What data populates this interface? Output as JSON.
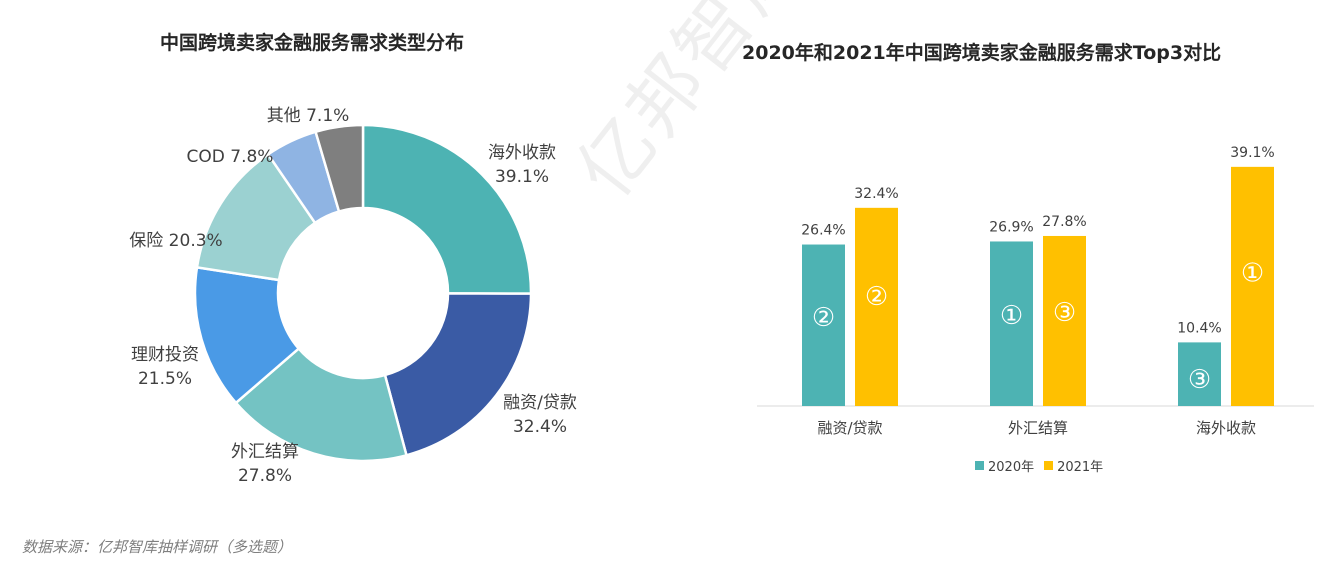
{
  "charts": [
    {
      "title": "中国跨境卖家金融服务需求类型分布",
      "chart_data": {
        "type": "pie",
        "donut": true,
        "slices": [
          {
            "label": "海外收款",
            "value": 39.1,
            "value_label": "39.1%",
            "color": "#4db3b3"
          },
          {
            "label": "融资/贷款",
            "value": 32.4,
            "value_label": "32.4%",
            "color": "#3a5ba5"
          },
          {
            "label": "外汇结算",
            "value": 27.8,
            "value_label": "27.8%",
            "color": "#74c3c3"
          },
          {
            "label": "理财投资",
            "value": 21.5,
            "value_label": "21.5%",
            "color": "#4a9ae6"
          },
          {
            "label": "保险",
            "value": 20.3,
            "value_label": "20.3%",
            "color": "#9bd1d1"
          },
          {
            "label": "COD",
            "value": 7.8,
            "value_label": "7.8%",
            "color": "#8fb4e3"
          },
          {
            "label": "其他",
            "value": 7.1,
            "value_label": "7.1%",
            "color": "#7f7f7f"
          }
        ]
      }
    },
    {
      "title": "2020年和2021年中国跨境卖家金融服务需求Top3对比",
      "chart_data": {
        "type": "bar",
        "categories": [
          "融资/贷款",
          "外汇结算",
          "海外收款"
        ],
        "series": [
          {
            "name": "2020年",
            "values": [
              26.4,
              26.9,
              10.4
            ],
            "value_labels": [
              "26.4%",
              "26.9%",
              "10.4%"
            ],
            "ranks": [
              "②",
              "①",
              "③"
            ],
            "color": "#4db3b3"
          },
          {
            "name": "2021年",
            "values": [
              32.4,
              27.8,
              39.1
            ],
            "value_labels": [
              "32.4%",
              "27.8%",
              "39.1%"
            ],
            "ranks": [
              "②",
              "③",
              "①"
            ],
            "color": "#ffc000"
          }
        ],
        "ylim": [
          0,
          43
        ],
        "legend": "bottom"
      }
    }
  ],
  "source": "数据来源：亿邦智库抽样调研（多选题）",
  "watermark": "亿邦智库"
}
